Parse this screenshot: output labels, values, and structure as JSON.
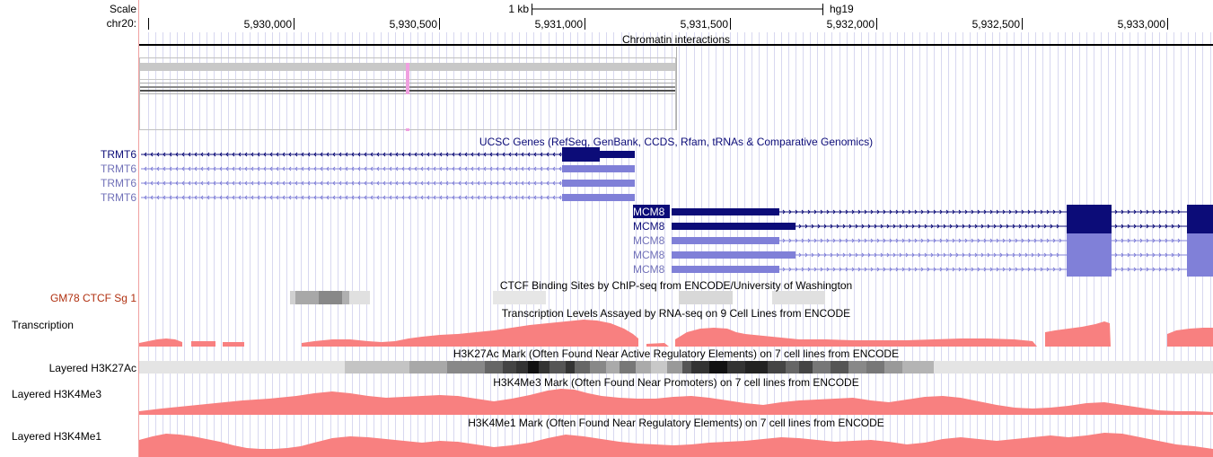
{
  "ruler": {
    "scale_label": "Scale",
    "chrom_label": "chr20:",
    "scale_bar_label": "1 kb",
    "assembly": "hg19",
    "ticks": [
      "5,930,000",
      "5,930,500",
      "5,931,000",
      "5,931,500",
      "5,932,000",
      "5,932,500",
      "5,933,000"
    ]
  },
  "tracks": {
    "chromatin": {
      "title": "Chromatin interactions"
    },
    "ucsc_genes": {
      "title": "UCSC Genes (RefSeq, GenBank, CCDS, Rfam, tRNAs & Comparative Genomics)",
      "trmt6_labels": [
        "TRMT6",
        "TRMT6",
        "TRMT6",
        "TRMT6"
      ],
      "mcm8_labels": [
        "MCM8",
        "MCM8",
        "MCM8",
        "MCM8",
        "MCM8"
      ]
    },
    "ctcf": {
      "title": "CTCF Binding Sites by ChIP-seq from ENCODE/University of Washington",
      "label": "GM78 CTCF Sg 1"
    },
    "transcription": {
      "title": "Transcription Levels Assayed by RNA-seq on 9 Cell Lines from ENCODE",
      "label": "Transcription"
    },
    "h3k27ac": {
      "title": "H3K27Ac Mark (Often Found Near Active Regulatory Elements) on 7 cell lines from ENCODE",
      "label": "Layered H3K27Ac"
    },
    "h3k4me3": {
      "title": "H3K4Me3 Mark (Often Found Near Promoters) on 7 cell lines from ENCODE",
      "label": "Layered H3K4Me3"
    },
    "h3k4me1": {
      "title": "H3K4Me1 Mark (Often Found Near Regulatory Elements) on 7 cell lines from ENCODE",
      "label": "Layered H3K4Me1"
    }
  },
  "colors": {
    "gene_dark": "#0c0c78",
    "gene_light": "#8080d8",
    "signal": "#f88080",
    "ctcf_label": "#b03010",
    "grid": "#d8d8f0"
  }
}
